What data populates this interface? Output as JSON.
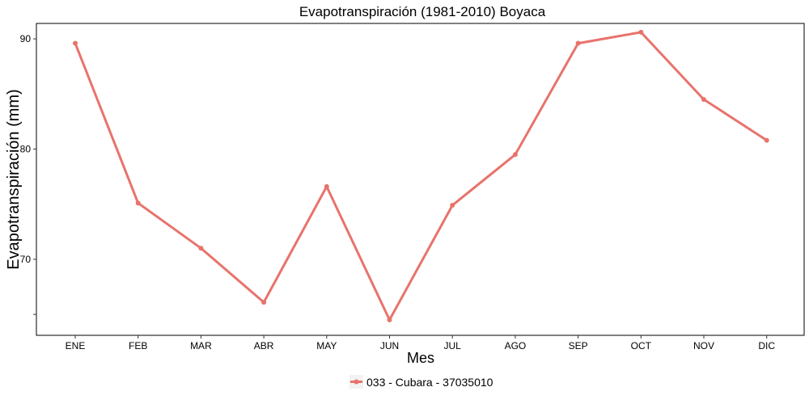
{
  "chart_data": {
    "type": "line",
    "title": "Evapotranspiración (1981-2010)  Boyaca",
    "xlabel": "Mes",
    "ylabel": "Evapotranspiración  (mm)",
    "categories": [
      "ENE",
      "FEB",
      "MAR",
      "ABR",
      "MAY",
      "JUN",
      "JUL",
      "AGO",
      "SEP",
      "OCT",
      "NOV",
      "DIC"
    ],
    "y_ticks": [
      70,
      80,
      90
    ],
    "ylim": [
      63.1,
      91.4
    ],
    "grid": false,
    "legend_position": "bottom",
    "series": [
      {
        "name": "033 - Cubara - 37035010",
        "color": "#E8736C",
        "values": [
          89.6,
          75.1,
          71.0,
          66.1,
          76.6,
          64.5,
          74.9,
          79.5,
          89.6,
          90.6,
          84.5,
          80.8
        ]
      }
    ]
  }
}
